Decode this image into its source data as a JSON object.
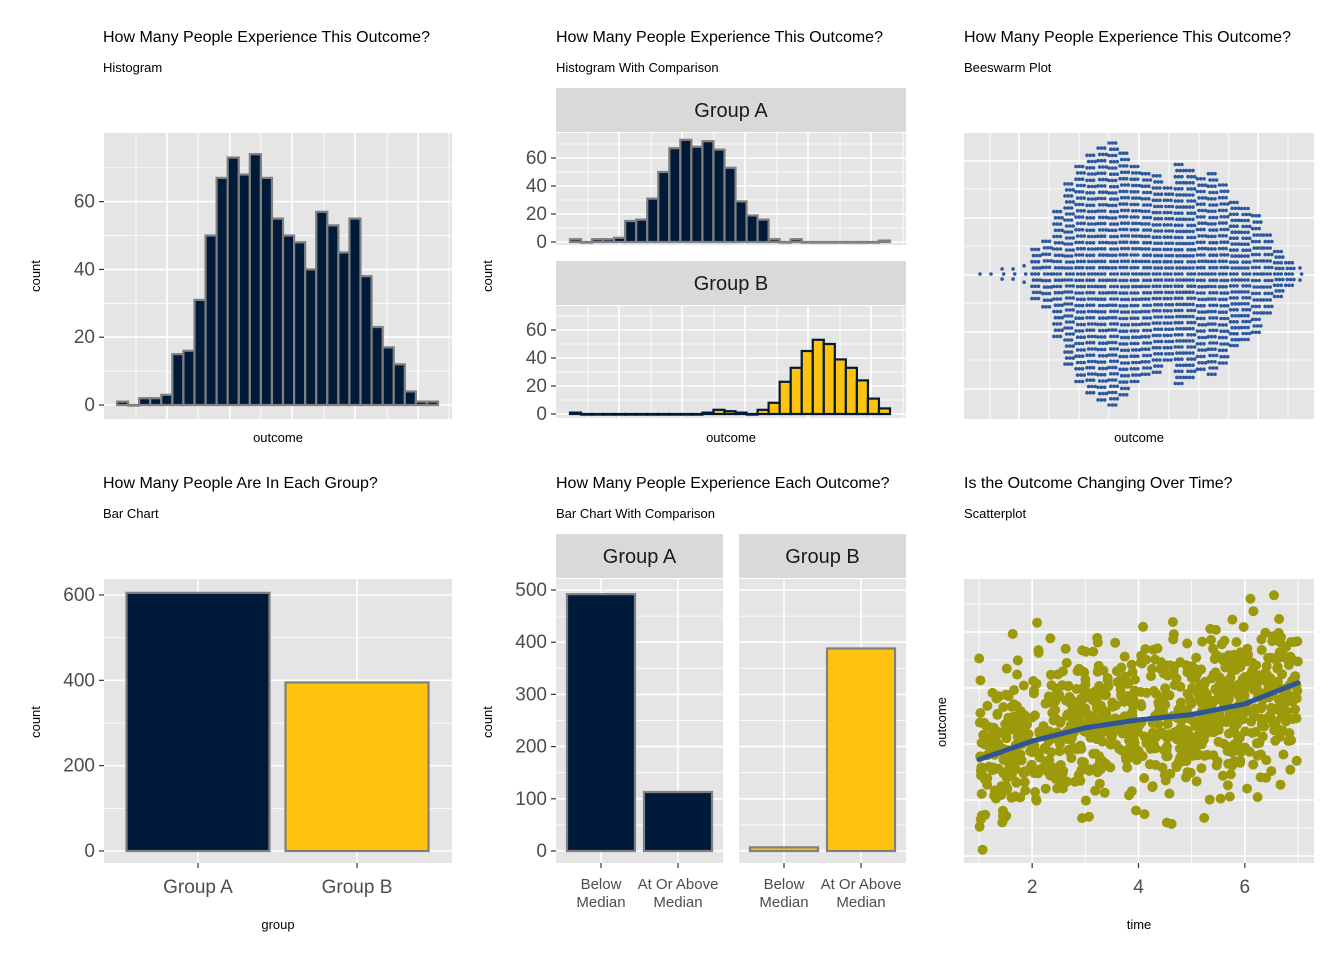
{
  "colors": {
    "panel_bg": "#e5e5e5",
    "grid": "#ffffff",
    "strip_bg": "#d9d9d9",
    "navy": "#001a39",
    "gold": "#ffc20e",
    "bar_border": "#808080",
    "beeswarm_point": "#2c58a0",
    "scatter_point": "#9c9a0a",
    "smooth_line": "#2f5597"
  },
  "chart_data": [
    {
      "type": "bar",
      "id": "histogram",
      "title": "How Many People Experience This Outcome?",
      "subtitle": "Histogram",
      "xlabel": "outcome",
      "ylabel": "count",
      "ylim": [
        0,
        77
      ],
      "yticks": [
        0,
        20,
        40,
        60
      ],
      "values": [
        1,
        0,
        2,
        2,
        3,
        15,
        16,
        31,
        50,
        67,
        73,
        68,
        74,
        67,
        55,
        50,
        48,
        40,
        57,
        53,
        45,
        55,
        38,
        23,
        17,
        12,
        4,
        1,
        1
      ],
      "series": [
        {
          "values": [
            1,
            0,
            2,
            2,
            3,
            15,
            16,
            31,
            50,
            67,
            73,
            68,
            74,
            67,
            55,
            50,
            48,
            40,
            57,
            53,
            45,
            55,
            38,
            23,
            17,
            12,
            4,
            1,
            1
          ]
        }
      ]
    },
    {
      "type": "bar",
      "id": "histogram-comparison",
      "title": "How Many People Experience This Outcome?",
      "subtitle": "Histogram With Comparison",
      "xlabel": "outcome",
      "ylabel": "count",
      "yticks": [
        0,
        20,
        40,
        60
      ],
      "ylim": [
        0,
        77
      ],
      "facets": [
        {
          "name": "Group A",
          "values": [
            2,
            0,
            2,
            2,
            3,
            15,
            16,
            31,
            50,
            67,
            73,
            68,
            72,
            66,
            53,
            29,
            19,
            16,
            2,
            0,
            2,
            0,
            0,
            0,
            0,
            0,
            0,
            0,
            1
          ]
        },
        {
          "name": "Group B",
          "values": [
            1,
            0,
            0,
            0,
            0,
            0,
            0,
            0,
            0,
            0,
            0,
            0,
            1,
            3,
            2,
            1,
            0,
            3,
            8,
            23,
            33,
            45,
            53,
            50,
            39,
            33,
            24,
            11,
            4
          ]
        }
      ]
    },
    {
      "type": "scatter",
      "id": "beeswarm",
      "title": "How Many People Experience This Outcome?",
      "subtitle": "Beeswarm Plot",
      "xlabel": "outcome",
      "ylabel": "",
      "x_range": [
        0,
        1
      ],
      "columns": [
        3,
        3,
        5,
        5,
        8,
        24,
        32,
        61,
        88,
        105,
        116,
        123,
        128,
        118,
        105,
        98,
        96,
        84,
        107,
        101,
        93,
        98,
        87,
        70,
        64,
        57,
        38,
        22,
        11,
        6
      ]
    },
    {
      "type": "bar",
      "id": "bar-chart",
      "title": "How Many People Are In Each Group?",
      "subtitle": "Bar Chart",
      "xlabel": "group",
      "ylabel": "count",
      "ylim": [
        0,
        640
      ],
      "yticks": [
        0,
        200,
        400,
        600
      ],
      "categories": [
        "Group A",
        "Group B"
      ],
      "values": [
        605,
        395
      ]
    },
    {
      "type": "bar",
      "id": "bar-chart-comparison",
      "title": "How Many People Experience Each Outcome?",
      "subtitle": "Bar Chart With Comparison",
      "xlabel": "",
      "ylabel": "count",
      "ylim": [
        0,
        525
      ],
      "yticks": [
        0,
        100,
        200,
        300,
        400,
        500
      ],
      "categories": [
        "Below\nMedian",
        "At Or Above\nMedian"
      ],
      "facets": [
        {
          "name": "Group A",
          "values": [
            492,
            113
          ]
        },
        {
          "name": "Group B",
          "values": [
            7,
            388
          ]
        }
      ]
    },
    {
      "type": "scatter",
      "id": "scatterplot",
      "title": "Is the Outcome Changing Over Time?",
      "subtitle": "Scatterplot",
      "xlabel": "time",
      "ylabel": "outcome",
      "xlim": [
        0.7,
        7.3
      ],
      "xticks": [
        2,
        4,
        6
      ],
      "n_points": 900,
      "trend": [
        [
          1,
          0.36
        ],
        [
          2,
          0.43
        ],
        [
          3,
          0.48
        ],
        [
          4,
          0.51
        ],
        [
          5,
          0.53
        ],
        [
          6,
          0.57
        ],
        [
          7,
          0.65
        ]
      ]
    }
  ]
}
